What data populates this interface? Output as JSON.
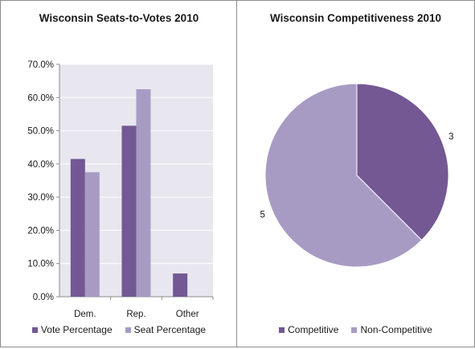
{
  "colors": {
    "dark": "#735893",
    "light": "#A89BC3",
    "plot_bg": "#E8E6EF",
    "grid": "#FFFFFF"
  },
  "chart_data": [
    {
      "type": "bar",
      "title": "Wisconsin Seats-to-Votes 2010",
      "categories": [
        "Dem.",
        "Rep.",
        "Other"
      ],
      "series": [
        {
          "name": "Vote Percentage",
          "values": [
            41.5,
            51.5,
            7.0
          ],
          "color": "#735893"
        },
        {
          "name": "Seat Percentage",
          "values": [
            37.5,
            62.5,
            0.0
          ],
          "color": "#A89BC3"
        }
      ],
      "ylim": [
        0,
        70
      ],
      "yticks": [
        "0.0%",
        "10.0%",
        "20.0%",
        "30.0%",
        "40.0%",
        "50.0%",
        "60.0%",
        "70.0%"
      ],
      "grid": true,
      "legend": "bottom"
    },
    {
      "type": "pie",
      "title": "Wisconsin Competitiveness 2010",
      "slices": [
        {
          "name": "Competitive",
          "value": 3,
          "label": "3",
          "color": "#735893"
        },
        {
          "name": "Non-Competitive",
          "value": 5,
          "label": "5",
          "color": "#A89BC3"
        }
      ],
      "legend": "bottom"
    }
  ]
}
